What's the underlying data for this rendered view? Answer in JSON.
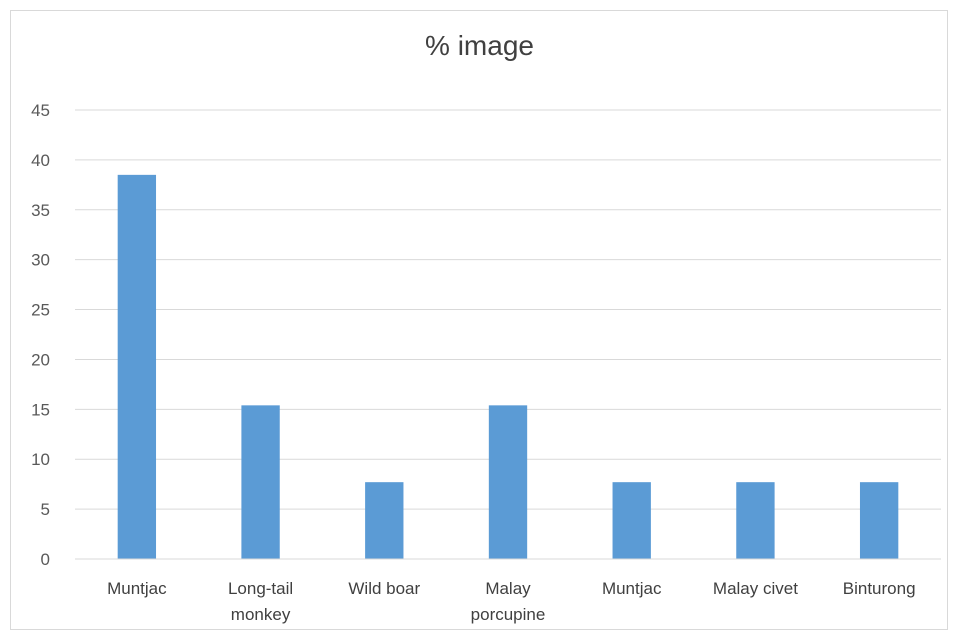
{
  "chart_data": {
    "type": "bar",
    "title": "% image",
    "xlabel": "",
    "ylabel": "",
    "categories": [
      [
        "Muntjac"
      ],
      [
        "Long-tail",
        "monkey"
      ],
      [
        "Wild boar"
      ],
      [
        "Malay",
        "porcupine"
      ],
      [
        "Muntjac"
      ],
      [
        "Malay civet"
      ],
      [
        "Binturong"
      ]
    ],
    "values": [
      38.5,
      15.4,
      7.7,
      15.4,
      7.7,
      7.7,
      7.7
    ],
    "ylim": [
      0,
      45
    ],
    "yticks": [
      "0",
      "5",
      "10",
      "15",
      "20",
      "25",
      "30",
      "35",
      "40",
      "45"
    ],
    "grid": true,
    "legend": "none",
    "colors": {
      "bar": "#5b9bd5",
      "grid": "#d9d9d9",
      "axis": "#d9d9d9"
    }
  }
}
